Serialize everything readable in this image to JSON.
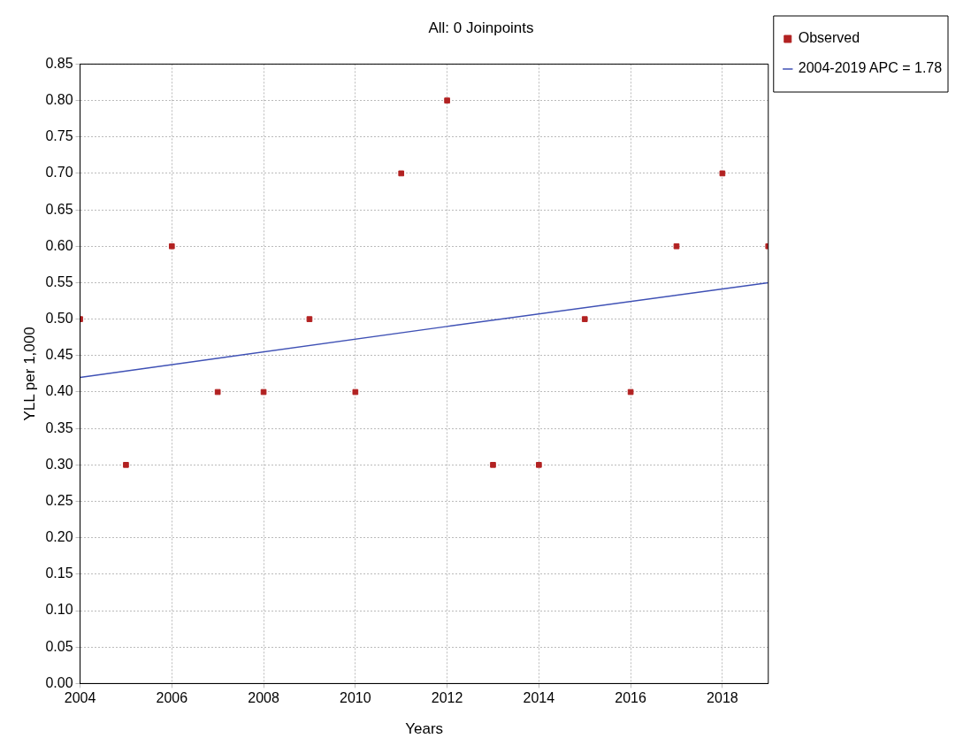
{
  "chart_data": {
    "type": "scatter",
    "title": "All: 0 Joinpoints",
    "xlabel": "Years",
    "ylabel": "YLL per 1,000",
    "x": [
      2004,
      2005,
      2006,
      2007,
      2008,
      2009,
      2010,
      2011,
      2012,
      2013,
      2014,
      2015,
      2016,
      2017,
      2018,
      2019
    ],
    "series": [
      {
        "name": "Observed",
        "type": "scatter",
        "color": "#b22222",
        "marker": "square",
        "values": [
          0.5,
          0.3,
          0.6,
          0.4,
          0.4,
          0.5,
          0.4,
          0.7,
          0.8,
          0.3,
          0.3,
          0.5,
          0.4,
          0.6,
          0.7,
          0.6
        ]
      },
      {
        "name": "2004-2019 APC = 1.78",
        "type": "line",
        "color": "#3f51b5",
        "marker": "none",
        "line_style": "solid",
        "x": [
          2004,
          2012,
          2019
        ],
        "values": [
          0.42,
          0.49,
          0.55
        ]
      }
    ],
    "xlim": [
      2004,
      2019
    ],
    "xticks": [
      2004,
      2006,
      2008,
      2010,
      2012,
      2014,
      2016,
      2018
    ],
    "ylim": [
      0,
      0.85
    ],
    "yticks": [
      {
        "value": 0,
        "label": "0.00"
      },
      {
        "value": 0.05,
        "label": "0.05"
      },
      {
        "value": 0.1,
        "label": "0.10"
      },
      {
        "value": 0.15,
        "label": "0.15"
      },
      {
        "value": 0.2,
        "label": "0.20"
      },
      {
        "value": 0.25,
        "label": "0.25"
      },
      {
        "value": 0.3,
        "label": "0.30"
      },
      {
        "value": 0.35,
        "label": "0.35"
      },
      {
        "value": 0.4,
        "label": "0.40"
      },
      {
        "value": 0.45,
        "label": "0.45"
      },
      {
        "value": 0.5,
        "label": "0.50"
      },
      {
        "value": 0.55,
        "label": "0.55"
      },
      {
        "value": 0.6,
        "label": "0.60"
      },
      {
        "value": 0.65,
        "label": "0.65"
      },
      {
        "value": 0.7,
        "label": "0.70"
      },
      {
        "value": 0.75,
        "label": "0.75"
      },
      {
        "value": 0.8,
        "label": "0.80"
      },
      {
        "value": 0.85,
        "label": "0.85"
      }
    ],
    "grid": true,
    "legend": "top right"
  }
}
